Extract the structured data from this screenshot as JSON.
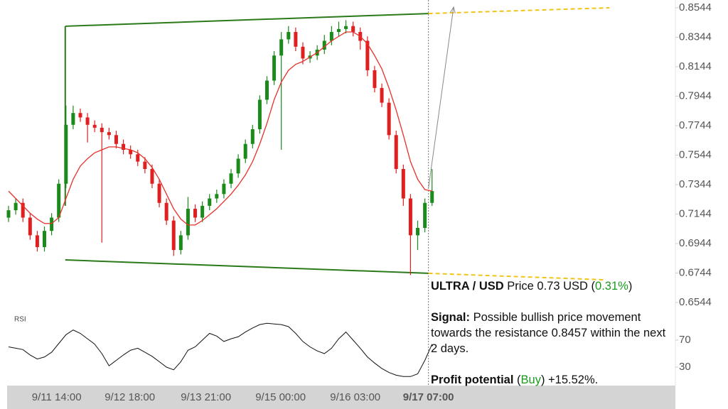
{
  "chart_data": {
    "type": "candlestick",
    "x": [
      0,
      1,
      2,
      3,
      4,
      5,
      6,
      7,
      8,
      9,
      10,
      11,
      12,
      13,
      14,
      15,
      16,
      17,
      18,
      19,
      20,
      21,
      22,
      23,
      24,
      25,
      26,
      27,
      28,
      29,
      30,
      31,
      32,
      33,
      34,
      35,
      36,
      37,
      38,
      39,
      40,
      41,
      42,
      43,
      44,
      45,
      46,
      47,
      48,
      49,
      50,
      51,
      52,
      53,
      54,
      55,
      56,
      57,
      58,
      59
    ],
    "open": [
      0.712,
      0.717,
      0.722,
      0.712,
      0.7,
      0.692,
      0.703,
      0.712,
      0.735,
      0.775,
      0.783,
      0.78,
      0.775,
      0.773,
      0.77,
      0.768,
      0.762,
      0.758,
      0.755,
      0.75,
      0.745,
      0.735,
      0.722,
      0.71,
      0.69,
      0.7,
      0.718,
      0.712,
      0.72,
      0.725,
      0.728,
      0.735,
      0.742,
      0.752,
      0.762,
      0.772,
      0.792,
      0.805,
      0.822,
      0.833,
      0.838,
      0.828,
      0.82,
      0.822,
      0.826,
      0.832,
      0.838,
      0.84,
      0.842,
      0.838,
      0.832,
      0.812,
      0.8,
      0.79,
      0.768,
      0.745,
      0.725,
      0.7,
      0.705,
      0.722
    ],
    "high": [
      0.72,
      0.725,
      0.725,
      0.715,
      0.703,
      0.706,
      0.715,
      0.738,
      0.788,
      0.788,
      0.786,
      0.783,
      0.778,
      0.776,
      0.773,
      0.771,
      0.765,
      0.761,
      0.758,
      0.753,
      0.748,
      0.738,
      0.725,
      0.713,
      0.703,
      0.726,
      0.721,
      0.723,
      0.728,
      0.731,
      0.738,
      0.745,
      0.755,
      0.765,
      0.775,
      0.795,
      0.808,
      0.825,
      0.838,
      0.842,
      0.841,
      0.831,
      0.825,
      0.829,
      0.836,
      0.842,
      0.845,
      0.846,
      0.845,
      0.841,
      0.835,
      0.815,
      0.803,
      0.793,
      0.771,
      0.748,
      0.728,
      0.71,
      0.725,
      0.745
    ],
    "low": [
      0.709,
      0.714,
      0.709,
      0.697,
      0.689,
      0.689,
      0.7,
      0.709,
      0.732,
      0.772,
      0.777,
      0.763,
      0.77,
      0.695,
      0.765,
      0.759,
      0.755,
      0.752,
      0.747,
      0.742,
      0.732,
      0.719,
      0.707,
      0.686,
      0.687,
      0.697,
      0.709,
      0.709,
      0.717,
      0.722,
      0.725,
      0.732,
      0.739,
      0.749,
      0.759,
      0.769,
      0.789,
      0.802,
      0.758,
      0.83,
      0.825,
      0.816,
      0.817,
      0.819,
      0.823,
      0.829,
      0.835,
      0.837,
      0.835,
      0.826,
      0.808,
      0.797,
      0.787,
      0.765,
      0.742,
      0.72,
      0.673,
      0.69,
      0.702,
      0.72
    ],
    "close": [
      0.717,
      0.722,
      0.712,
      0.7,
      0.692,
      0.703,
      0.712,
      0.735,
      0.775,
      0.783,
      0.78,
      0.775,
      0.773,
      0.77,
      0.768,
      0.762,
      0.758,
      0.755,
      0.75,
      0.745,
      0.735,
      0.722,
      0.71,
      0.69,
      0.7,
      0.718,
      0.712,
      0.72,
      0.725,
      0.728,
      0.735,
      0.742,
      0.752,
      0.762,
      0.772,
      0.792,
      0.805,
      0.822,
      0.833,
      0.838,
      0.828,
      0.82,
      0.822,
      0.826,
      0.832,
      0.838,
      0.84,
      0.842,
      0.838,
      0.832,
      0.812,
      0.8,
      0.79,
      0.768,
      0.745,
      0.725,
      0.7,
      0.705,
      0.722,
      0.73
    ],
    "up_color": "#1a8a1a",
    "down_color": "#e02020",
    "ma": {
      "color": "#e8302a",
      "values": [
        0.73,
        0.725,
        0.72,
        0.715,
        0.711,
        0.708,
        0.708,
        0.712,
        0.725,
        0.738,
        0.747,
        0.752,
        0.756,
        0.758,
        0.76,
        0.76,
        0.759,
        0.758,
        0.756,
        0.752,
        0.746,
        0.738,
        0.728,
        0.718,
        0.711,
        0.707,
        0.707,
        0.71,
        0.714,
        0.718,
        0.723,
        0.728,
        0.734,
        0.741,
        0.75,
        0.762,
        0.776,
        0.792,
        0.804,
        0.812,
        0.816,
        0.818,
        0.821,
        0.824,
        0.828,
        0.832,
        0.835,
        0.838,
        0.838,
        0.835,
        0.83,
        0.822,
        0.813,
        0.8,
        0.785,
        0.768,
        0.75,
        0.738,
        0.731,
        0.73
      ]
    },
    "xlim": [
      -0.2,
      92.9
    ],
    "ylim": [
      0.6544,
      0.8544
    ],
    "yticks": [
      0.8544,
      0.8344,
      0.8144,
      0.7944,
      0.7744,
      0.7544,
      0.7344,
      0.7144,
      0.6944,
      0.6744,
      0.6544
    ],
    "xticks": [
      {
        "value": 6.7,
        "label": "9/11 14:00"
      },
      {
        "value": 16.9,
        "label": "9/12 18:00"
      },
      {
        "value": 27.5,
        "label": "9/13 21:00"
      },
      {
        "value": 37.9,
        "label": "9/15 00:00"
      },
      {
        "value": 48.3,
        "label": "9/16 03:00"
      },
      {
        "value": 58.5,
        "label": "9/17 07:00"
      }
    ],
    "channel": {
      "color": "#2a7a1a",
      "upper": {
        "x": [
          7.9,
          58.5
        ],
        "y": [
          0.8419,
          0.8505
        ]
      },
      "lower": {
        "x": [
          7.9,
          58.5
        ],
        "y": [
          0.6833,
          0.6742
        ]
      }
    },
    "projection": {
      "color": "#f0c419",
      "upper": {
        "x": [
          58.5,
          83.7
        ],
        "y": [
          0.8505,
          0.8544
        ]
      },
      "lower": {
        "x": [
          58.5,
          83.0
        ],
        "y": [
          0.6742,
          0.6698
        ]
      }
    },
    "target_arrow": {
      "x": [
        58.5,
        62.0
      ],
      "y": [
        0.732,
        0.8549
      ]
    },
    "rsi": {
      "label": "RSI",
      "color": "#111",
      "ylim": [
        0,
        100
      ],
      "yticks": [
        70,
        30
      ],
      "values": [
        60,
        58,
        56,
        48,
        42,
        45,
        52,
        65,
        78,
        85,
        80,
        72,
        64,
        50,
        32,
        40,
        48,
        55,
        58,
        52,
        46,
        38,
        30,
        26,
        38,
        55,
        60,
        70,
        80,
        76,
        68,
        72,
        75,
        82,
        88,
        93,
        95,
        94,
        93,
        90,
        80,
        68,
        60,
        54,
        50,
        58,
        72,
        82,
        70,
        58,
        45,
        36,
        28,
        22,
        18,
        16,
        16,
        20,
        40,
        64
      ]
    }
  },
  "info": {
    "pair": "ULTRA / USD",
    "price": " Price 0.73 USD (",
    "change": "0.31%",
    "price_end": ")",
    "signal_label": "Signal:",
    "signal_text": " Possible bullish price movement towards the resistance 0.8457 within the next 2 days.",
    "profit_label": "Profit potential",
    "profit_open": " (",
    "profit_action": "Buy",
    "profit_value": ") +15.52%."
  }
}
